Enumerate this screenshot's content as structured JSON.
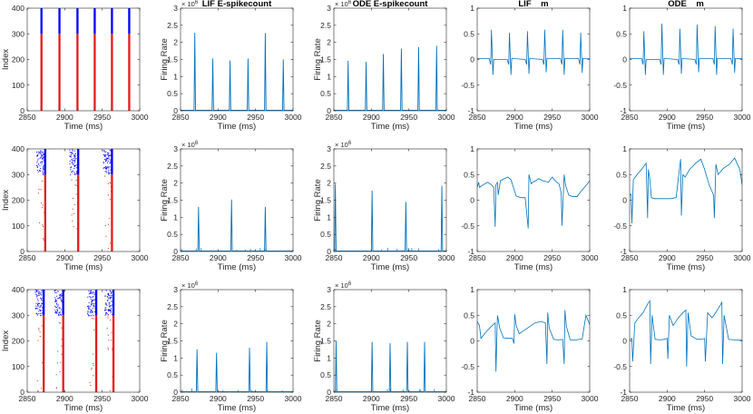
{
  "colors": {
    "axis": "#262626",
    "trace": "#0072bd",
    "exc": "#e41a1c",
    "inh": "#0000ff"
  },
  "chart_data": [
    {
      "type": "scatter",
      "kind": "raster",
      "title": "",
      "xlabel": "Time (ms)",
      "ylabel": "Index",
      "xlim": [
        2850,
        3000
      ],
      "ylim": [
        0,
        400
      ],
      "xticks": [
        2850,
        2900,
        2950,
        3000
      ],
      "yticks": [
        0,
        100,
        200,
        300,
        400
      ],
      "ytick_labels": [
        "0",
        "100",
        "200",
        "300",
        "400"
      ],
      "exc_range": [
        0,
        300
      ],
      "inh_range": [
        300,
        400
      ],
      "burst_times": [
        2869,
        2893,
        2917,
        2940,
        2963,
        2986
      ],
      "sparse": false,
      "seed": 1
    },
    {
      "type": "line",
      "kind": "spikes",
      "title": "LIF E-spikecount",
      "xlabel": "Time (ms)",
      "ylabel": "Firing Rate",
      "xlim": [
        2850,
        3000
      ],
      "ylim": [
        0,
        3
      ],
      "xticks": [
        2850,
        2900,
        2950,
        3000
      ],
      "yticks": [
        0,
        0.5,
        1,
        1.5,
        2,
        2.5,
        3
      ],
      "ytick_labels": [
        "0",
        "0.5",
        "1",
        "1.5",
        "2",
        "2.5",
        "3"
      ],
      "exponent_label": "× 10",
      "exponent_power": "6",
      "peak_times": [
        2869,
        2893,
        2916,
        2940,
        2963,
        2987
      ],
      "peak_values": [
        2.28,
        1.53,
        1.47,
        1.53,
        2.27,
        1.5
      ],
      "width": 0.8
    },
    {
      "type": "line",
      "kind": "spikes",
      "title": "ODE E-spikecount",
      "xlabel": "Time (ms)",
      "ylabel": "Firing Rate",
      "xlim": [
        2850,
        3000
      ],
      "ylim": [
        0,
        3
      ],
      "xticks": [
        2850,
        2900,
        2950,
        3000
      ],
      "yticks": [
        0,
        0.5,
        1,
        1.5,
        2,
        2.5,
        3
      ],
      "ytick_labels": [
        "0",
        "0.5",
        "1",
        "1.5",
        "2",
        "2.5",
        "3"
      ],
      "exponent_label": "× 10",
      "exponent_power": "6",
      "peak_times": [
        2869,
        2893,
        2916,
        2940,
        2963,
        2987
      ],
      "peak_values": [
        1.46,
        1.43,
        1.66,
        1.82,
        1.86,
        1.9
      ],
      "width": 0.8
    },
    {
      "type": "line",
      "kind": "trace",
      "title": "LIF    m",
      "xlabel": "Time (ms)",
      "ylabel": "",
      "xlim": [
        2850,
        3000
      ],
      "ylim": [
        -1,
        1
      ],
      "xticks": [
        2850,
        2900,
        2950,
        3000
      ],
      "yticks": [
        -1,
        -0.5,
        0,
        0.5,
        1
      ],
      "ytick_labels": [
        "-1",
        "-0.5",
        "0",
        "0.5",
        "1"
      ],
      "x": [
        2850,
        2866,
        2868,
        2869,
        2871,
        2872,
        2890,
        2892,
        2893,
        2895,
        2896,
        2914,
        2916,
        2917,
        2919,
        2920,
        2937,
        2939,
        2940,
        2942,
        2943,
        2961,
        2963,
        2964,
        2966,
        2967,
        2985,
        2987,
        2988,
        2990,
        2991,
        3000
      ],
      "y": [
        0.02,
        0.02,
        -0.1,
        0.58,
        -0.3,
        0,
        0,
        -0.1,
        0.52,
        -0.3,
        0.02,
        0,
        -0.1,
        0.55,
        -0.28,
        0.02,
        0,
        -0.1,
        0.58,
        -0.25,
        0.02,
        0.02,
        -0.1,
        0.58,
        -0.3,
        0.02,
        0.02,
        -0.1,
        0.52,
        -0.26,
        0.02,
        0.02
      ]
    },
    {
      "type": "line",
      "kind": "trace",
      "title": "ODE    m",
      "xlabel": "Time (ms)",
      "ylabel": "",
      "xlim": [
        2850,
        3000
      ],
      "ylim": [
        -1,
        1
      ],
      "xticks": [
        2850,
        2900,
        2950,
        3000
      ],
      "yticks": [
        -1,
        -0.5,
        0,
        0.5,
        1
      ],
      "ytick_labels": [
        "-1",
        "-0.5",
        "0",
        "0.5",
        "1"
      ],
      "x": [
        2850,
        2866,
        2868,
        2869,
        2871,
        2872,
        2890,
        2892,
        2893,
        2895,
        2896,
        2914,
        2916,
        2917,
        2919,
        2920,
        2937,
        2939,
        2940,
        2942,
        2943,
        2961,
        2963,
        2964,
        2966,
        2967,
        2985,
        2987,
        2988,
        2990,
        2991,
        3000
      ],
      "y": [
        0.02,
        0.02,
        -0.1,
        0.55,
        -0.3,
        0,
        0,
        -0.1,
        0.7,
        -0.3,
        0.02,
        0,
        -0.1,
        0.6,
        -0.28,
        0.02,
        0,
        -0.1,
        0.68,
        -0.25,
        0.02,
        0.02,
        -0.1,
        0.65,
        -0.3,
        0.02,
        0.02,
        -0.1,
        0.6,
        -0.26,
        0.02,
        0.02
      ]
    },
    {
      "type": "scatter",
      "kind": "raster",
      "title": "",
      "xlabel": "Time (ms)",
      "ylabel": "Index",
      "xlim": [
        2850,
        3000
      ],
      "ylim": [
        0,
        400
      ],
      "xticks": [
        2850,
        2900,
        2950,
        3000
      ],
      "yticks": [
        0,
        100,
        200,
        300,
        400
      ],
      "ytick_labels": [
        "0",
        "100",
        "200",
        "300",
        "400"
      ],
      "exc_range": [
        0,
        300
      ],
      "inh_range": [
        300,
        400
      ],
      "burst_times": [
        2874,
        2918,
        2963
      ],
      "sparse": true,
      "seed": 2
    },
    {
      "type": "line",
      "kind": "spikes",
      "title": "",
      "xlabel": "Time (ms)",
      "ylabel": "Firing Rate",
      "xlim": [
        2850,
        3000
      ],
      "ylim": [
        0,
        3
      ],
      "xticks": [
        2850,
        2900,
        2950,
        3000
      ],
      "yticks": [
        0,
        0.5,
        1,
        1.5,
        2,
        2.5,
        3
      ],
      "ytick_labels": [
        "0",
        "0.5",
        "1",
        "1.5",
        "2",
        "2.5",
        "3"
      ],
      "exponent_label": "× 10",
      "exponent_power": "6",
      "peak_times": [
        2874,
        2918,
        2963
      ],
      "peak_values": [
        1.3,
        1.52,
        1.3
      ],
      "width": 0.8,
      "noise": true
    },
    {
      "type": "line",
      "kind": "spikes",
      "title": "",
      "xlabel": "Time (ms)",
      "ylabel": "Firing Rate",
      "xlim": [
        2850,
        3000
      ],
      "ylim": [
        0,
        3
      ],
      "xticks": [
        2850,
        2900,
        2950,
        3000
      ],
      "yticks": [
        0,
        0.5,
        1,
        1.5,
        2,
        2.5,
        3
      ],
      "ytick_labels": [
        "0",
        "0.5",
        "1",
        "1.5",
        "2",
        "2.5",
        "3"
      ],
      "exponent_label": "× 10",
      "exponent_power": "6",
      "peak_times": [
        2852,
        2901,
        2946,
        2994
      ],
      "peak_values": [
        1.98,
        1.78,
        1.45,
        1.92
      ],
      "width": 0.8,
      "noise": true
    },
    {
      "type": "line",
      "kind": "trace",
      "title": "",
      "xlabel": "Time (ms)",
      "ylabel": "",
      "xlim": [
        2850,
        3000
      ],
      "ylim": [
        -1,
        1
      ],
      "xticks": [
        2850,
        2900,
        2950,
        3000
      ],
      "yticks": [
        -1,
        -0.5,
        0,
        0.5,
        1
      ],
      "ytick_labels": [
        "-1",
        "-0.5",
        "0",
        "0.5",
        "1"
      ],
      "x": [
        2850,
        2852,
        2853,
        2858,
        2864,
        2869,
        2872,
        2874,
        2875,
        2877,
        2878,
        2881,
        2886,
        2891,
        2895,
        2902,
        2908,
        2911,
        2914,
        2918,
        2919,
        2922,
        2924,
        2928,
        2932,
        2937,
        2945,
        2950,
        2954,
        2959,
        2962,
        2963,
        2966,
        2968,
        2972,
        2977,
        2983,
        2990,
        2996,
        3000
      ],
      "y": [
        0.25,
        0.35,
        0.25,
        0.3,
        0.35,
        0.3,
        0.25,
        -0.52,
        0.3,
        0.35,
        0.1,
        0.38,
        0.42,
        0.45,
        0.4,
        0.08,
        0.05,
        0.05,
        0.05,
        -0.55,
        0.5,
        0.32,
        0.35,
        0.38,
        0.42,
        0.38,
        0.35,
        0.45,
        0.38,
        0.32,
        0.15,
        -0.5,
        0.5,
        0.28,
        0.1,
        0.07,
        0.07,
        0.2,
        0.3,
        0.38
      ]
    },
    {
      "type": "line",
      "kind": "trace",
      "title": "",
      "xlabel": "Time (ms)",
      "ylabel": "",
      "xlim": [
        2850,
        3000
      ],
      "ylim": [
        -1,
        1
      ],
      "xticks": [
        2850,
        2900,
        2950,
        3000
      ],
      "yticks": [
        -1,
        -0.5,
        0,
        0.5,
        1
      ],
      "ytick_labels": [
        "-1",
        "-0.5",
        "0",
        "0.5",
        "1"
      ],
      "x": [
        2850,
        2852,
        2853,
        2855,
        2860,
        2866,
        2872,
        2874,
        2875,
        2877,
        2879,
        2883,
        2890,
        2897,
        2905,
        2912,
        2918,
        2919,
        2921,
        2924,
        2930,
        2938,
        2945,
        2950,
        2956,
        2962,
        2963,
        2965,
        2968,
        2975,
        2983,
        2990,
        2997,
        3000
      ],
      "y": [
        0.1,
        0.12,
        -0.45,
        0.4,
        0.5,
        0.6,
        0.72,
        -0.35,
        0.6,
        0.4,
        0.05,
        0.03,
        0.03,
        0.03,
        0.03,
        0.05,
        0.8,
        -0.3,
        0.5,
        0.45,
        0.6,
        0.72,
        0.8,
        0.6,
        0.3,
        0.1,
        -0.35,
        0.7,
        0.5,
        0.62,
        0.7,
        0.82,
        0.6,
        0.3
      ]
    },
    {
      "type": "scatter",
      "kind": "raster",
      "title": "",
      "xlabel": "Time (ms)",
      "ylabel": "Index",
      "xlim": [
        2850,
        3000
      ],
      "ylim": [
        0,
        400
      ],
      "xticks": [
        2850,
        2900,
        2950,
        3000
      ],
      "yticks": [
        0,
        100,
        200,
        300,
        400
      ],
      "ytick_labels": [
        "0",
        "100",
        "200",
        "300",
        "400"
      ],
      "exc_range": [
        0,
        300
      ],
      "inh_range": [
        300,
        400
      ],
      "burst_times": [
        2872,
        2898,
        2942,
        2965
      ],
      "sparse": true,
      "seed": 3
    },
    {
      "type": "line",
      "kind": "spikes",
      "title": "",
      "xlabel": "Time (ms)",
      "ylabel": "Firing Rate",
      "xlim": [
        2850,
        3000
      ],
      "ylim": [
        0,
        3
      ],
      "xticks": [
        2850,
        2900,
        2950,
        3000
      ],
      "yticks": [
        0,
        0.5,
        1,
        1.5,
        2,
        2.5,
        3
      ],
      "ytick_labels": [
        "0",
        "0.5",
        "1",
        "1.5",
        "2",
        "2.5",
        "3"
      ],
      "exponent_label": "× 10",
      "exponent_power": "6",
      "peak_times": [
        2872,
        2898,
        2942,
        2965
      ],
      "peak_values": [
        1.25,
        1.15,
        1.3,
        1.47
      ],
      "width": 0.8,
      "noise": true
    },
    {
      "type": "line",
      "kind": "spikes",
      "title": "",
      "xlabel": "Time (ms)",
      "ylabel": "Firing Rate",
      "xlim": [
        2850,
        3000
      ],
      "ylim": [
        0,
        3
      ],
      "xticks": [
        2850,
        2900,
        2950,
        3000
      ],
      "yticks": [
        0,
        0.5,
        1,
        1.5,
        2,
        2.5,
        3
      ],
      "ytick_labels": [
        "0",
        "0.5",
        "1",
        "1.5",
        "2",
        "2.5",
        "3"
      ],
      "exponent_label": "× 10",
      "exponent_power": "6",
      "peak_times": [
        2853,
        2901,
        2925,
        2948,
        2971
      ],
      "peak_values": [
        1.5,
        1.47,
        1.43,
        1.47,
        1.47
      ],
      "width": 0.8,
      "noise": true
    },
    {
      "type": "line",
      "kind": "trace",
      "title": "",
      "xlabel": "Time (ms)",
      "ylabel": "",
      "xlim": [
        2850,
        3000
      ],
      "ylim": [
        -1,
        1
      ],
      "xticks": [
        2850,
        2900,
        2950,
        3000
      ],
      "yticks": [
        -1,
        -0.5,
        0,
        0.5,
        1
      ],
      "ytick_labels": [
        "-1",
        "-0.5",
        "0",
        "0.5",
        "1"
      ],
      "x": [
        2850,
        2853,
        2855,
        2862,
        2870,
        2874,
        2875,
        2877,
        2880,
        2885,
        2893,
        2897,
        2899,
        2900,
        2902,
        2906,
        2912,
        2920,
        2927,
        2935,
        2941,
        2943,
        2944,
        2946,
        2952,
        2958,
        2964,
        2966,
        2967,
        2969,
        2974,
        2982,
        2990,
        2995,
        3000
      ],
      "y": [
        0.38,
        0.3,
        0.05,
        0.18,
        0.3,
        0.35,
        -0.6,
        0.5,
        0.25,
        0.06,
        0.05,
        0.05,
        -0.05,
        0.52,
        0.3,
        0.14,
        0.2,
        0.28,
        0.35,
        0.38,
        0.35,
        -0.45,
        0.55,
        0.25,
        0.03,
        0.02,
        0.03,
        -0.45,
        0.6,
        0.28,
        0.02,
        0.02,
        0.04,
        0.5,
        0.32
      ]
    },
    {
      "type": "line",
      "kind": "trace",
      "title": "",
      "xlabel": "Time (ms)",
      "ylabel": "",
      "xlim": [
        2850,
        3000
      ],
      "ylim": [
        -1,
        1
      ],
      "xticks": [
        2850,
        2900,
        2950,
        3000
      ],
      "yticks": [
        -1,
        -0.5,
        0,
        0.5,
        1
      ],
      "ytick_labels": [
        "-1",
        "-0.5",
        "0",
        "0.5",
        "1"
      ],
      "x": [
        2850,
        2853,
        2854,
        2857,
        2862,
        2868,
        2874,
        2877,
        2878,
        2880,
        2884,
        2890,
        2896,
        2900,
        2901,
        2903,
        2908,
        2915,
        2921,
        2925,
        2926,
        2928,
        2932,
        2940,
        2948,
        2950,
        2951,
        2954,
        2960,
        2966,
        2971,
        2973,
        2974,
        2976,
        2982,
        2990,
        3000
      ],
      "y": [
        0.02,
        0.05,
        -0.4,
        0.35,
        0.45,
        0.55,
        0.72,
        0.78,
        -0.45,
        0.5,
        0.03,
        0.02,
        0.03,
        0.05,
        -0.35,
        0.5,
        0.3,
        0.45,
        0.55,
        0.6,
        -0.5,
        0.55,
        0.1,
        0.03,
        0.04,
        0.05,
        -0.4,
        0.55,
        0.45,
        0.58,
        0.7,
        0.75,
        -0.45,
        0.5,
        0.03,
        0.02,
        0.02
      ]
    }
  ]
}
